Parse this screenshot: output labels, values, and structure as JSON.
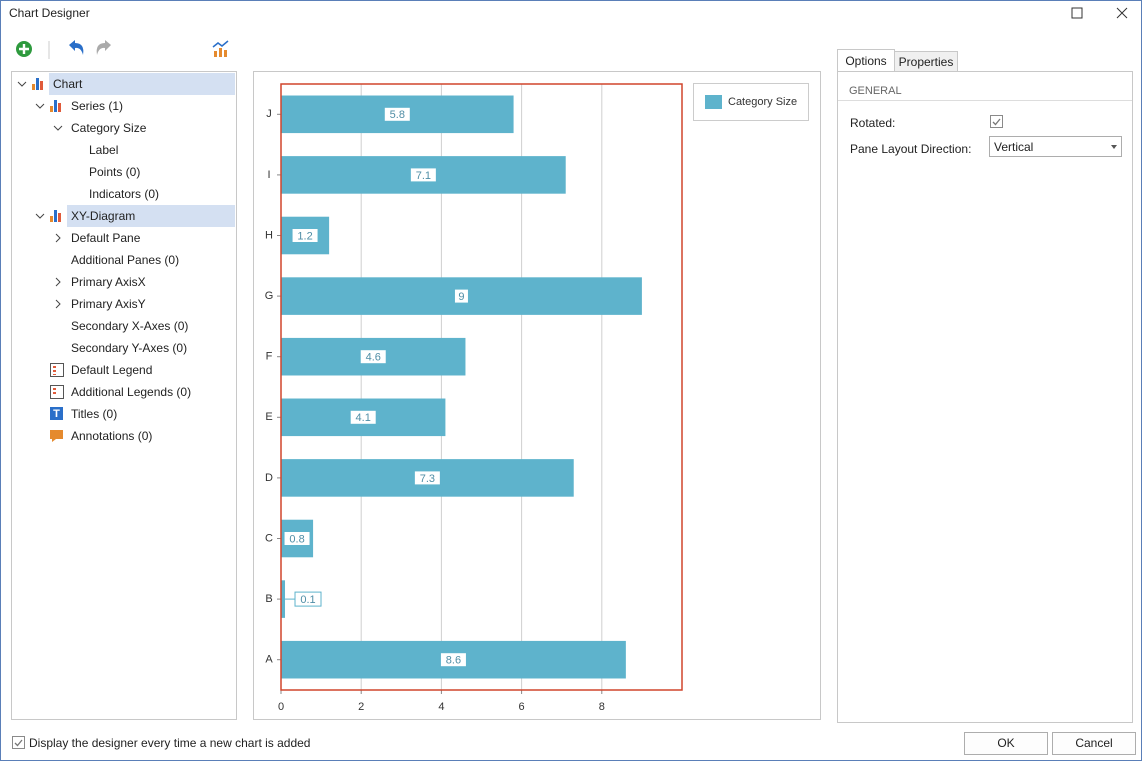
{
  "window": {
    "title": "Chart Designer"
  },
  "tree": {
    "items": [
      "Chart",
      "Series (1)",
      "Category Size",
      "Label",
      "Points (0)",
      "Indicators (0)",
      "XY-Diagram",
      "Default Pane",
      "Additional Panes (0)",
      "Primary AxisX",
      "Primary AxisY",
      "Secondary X-Axes (0)",
      "Secondary Y-Axes (0)",
      "Default Legend",
      "Additional Legends (0)",
      "Titles (0)",
      "Annotations (0)"
    ]
  },
  "chart_data": {
    "type": "bar",
    "orientation": "horizontal",
    "categories": [
      "A",
      "B",
      "C",
      "D",
      "E",
      "F",
      "G",
      "H",
      "I",
      "J"
    ],
    "series": [
      {
        "name": "Category Size",
        "color": "#5eb3cc",
        "values": [
          8.6,
          0.1,
          0.8,
          7.3,
          4.1,
          4.6,
          9,
          1.2,
          7.1,
          5.8
        ]
      }
    ],
    "xlim": [
      0,
      10
    ],
    "xticks": [
      0,
      2,
      4,
      6,
      8
    ],
    "grid": true
  },
  "options": {
    "tabs": [
      "Options",
      "Properties"
    ],
    "section": "GENERAL",
    "rotated": {
      "label": "Rotated:",
      "checked": true
    },
    "pane_layout_direction": {
      "label": "Pane Layout Direction:",
      "value": "Vertical"
    }
  },
  "footer": {
    "checkbox": {
      "label": "Display the designer every time a new chart is added",
      "checked": true
    },
    "ok": "OK",
    "cancel": "Cancel"
  }
}
